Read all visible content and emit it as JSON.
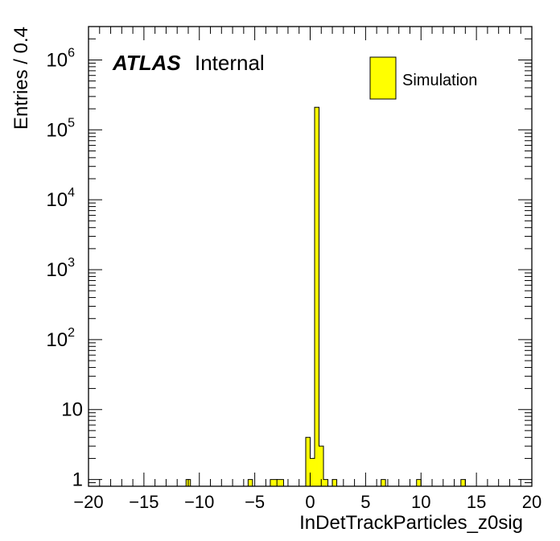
{
  "chart_data": {
    "type": "histogram",
    "xlabel": "InDetTrackParticles_z0sig",
    "ylabel": "Entries / 0.4",
    "xlim": [
      -20,
      20
    ],
    "ylim": [
      0.8,
      3000000
    ],
    "log_y": true,
    "bin_width": 0.4,
    "x_ticks": [
      -20,
      -15,
      -10,
      -5,
      0,
      5,
      10,
      15,
      20
    ],
    "x_tick_labels": [
      "−20",
      "−15",
      "−10",
      "−5",
      "0",
      "5",
      "10",
      "15",
      "20"
    ],
    "y_ticks": [
      {
        "value": 1,
        "base": "1",
        "exp": ""
      },
      {
        "value": 10,
        "base": "10",
        "exp": ""
      },
      {
        "value": 100,
        "base": "10",
        "exp": "2"
      },
      {
        "value": 1000,
        "base": "10",
        "exp": "3"
      },
      {
        "value": 10000,
        "base": "10",
        "exp": "4"
      },
      {
        "value": 100000,
        "base": "10",
        "exp": "5"
      },
      {
        "value": 1000000,
        "base": "10",
        "exp": "6"
      }
    ],
    "legend": {
      "label": "Simulation",
      "color": "#ffff00",
      "position": "top-right"
    },
    "atlas_label": {
      "bold": "ATLAS",
      "text": "Internal",
      "position": "top-left"
    },
    "bins": [
      {
        "x": -11.2,
        "value": 1
      },
      {
        "x": -5.6,
        "value": 1
      },
      {
        "x": -3.6,
        "value": 1
      },
      {
        "x": -3.2,
        "value": 1
      },
      {
        "x": -2.8,
        "value": 1
      },
      {
        "x": -0.4,
        "value": 4
      },
      {
        "x": 0.0,
        "value": 2
      },
      {
        "x": 0.4,
        "value": 210000
      },
      {
        "x": 0.8,
        "value": 3
      },
      {
        "x": 1.2,
        "value": 1
      },
      {
        "x": 2.0,
        "value": 1
      },
      {
        "x": 6.4,
        "value": 1
      },
      {
        "x": 9.6,
        "value": 1
      },
      {
        "x": 13.6,
        "value": 1
      }
    ],
    "colors": {
      "fill": "#ffff00",
      "line": "#000000",
      "frame": "#000000"
    }
  }
}
